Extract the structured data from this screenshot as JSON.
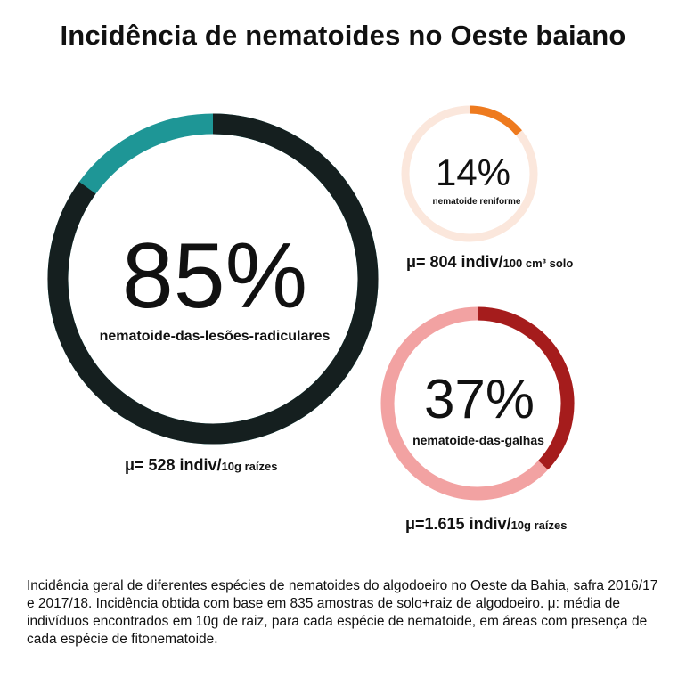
{
  "title": "Incidência de nematoides no Oeste baiano",
  "chart_data": [
    {
      "type": "pie",
      "style": "donut",
      "value": 85,
      "value_label": "85%",
      "label": "nematoide-das-lesões-radiculares",
      "mean_prefix": "μ= 528 indiv/",
      "mean_unit": "10g raízes",
      "colors": {
        "filled": "#151f1f",
        "remaining": "#1e9696",
        "fill_text": "#111111"
      }
    },
    {
      "type": "pie",
      "style": "donut",
      "value": 14,
      "value_label": "14%",
      "label": "nematoide reniforme",
      "mean_prefix": "μ= 804 indiv/",
      "mean_unit": "100 cm³ solo",
      "colors": {
        "filled": "#ee7a1e",
        "remaining": "#fbe7dc",
        "fill_text": "#8a2e08"
      }
    },
    {
      "type": "pie",
      "style": "donut",
      "value": 37,
      "value_label": "37%",
      "label": "nematoide-das-galhas",
      "mean_prefix": "μ=1.615 indiv/",
      "mean_unit": "10g raízes",
      "colors": {
        "filled": "#a51c1c",
        "remaining": "#f2a2a2",
        "fill_text": "#111111"
      }
    }
  ],
  "caption": "Incidência geral de diferentes espécies de nematoides do algodoeiro no Oeste da Bahia, safra 2016/17 e 2017/18. Incidência obtida com base em 835 amostras de solo+raiz de algodoeiro. μ: média de indivíduos encontrados em 10g de raiz, para cada espécie de nematoide, em áreas com presença de cada espécie de fitonematoide."
}
